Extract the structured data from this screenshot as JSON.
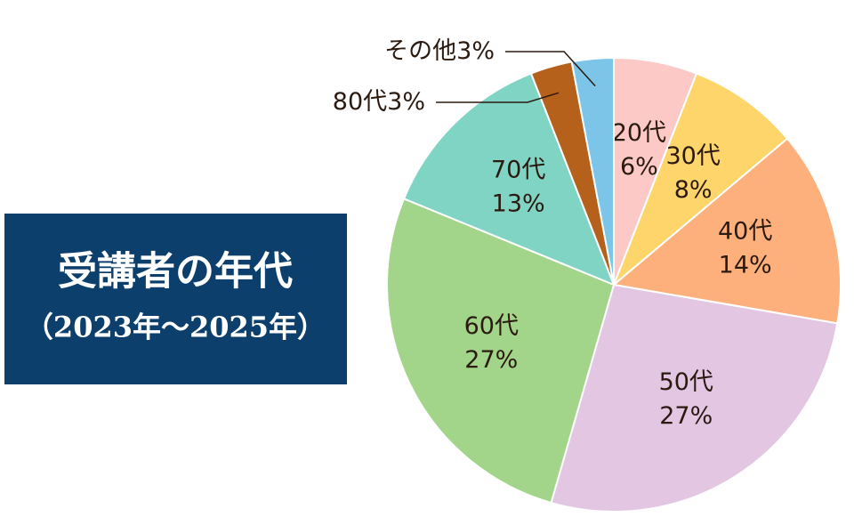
{
  "chart_data": {
    "type": "pie",
    "title": "受講者の年代",
    "subtitle": "（2023年〜2025年）",
    "categories": [
      "20代",
      "30代",
      "40代",
      "50代",
      "60代",
      "70代",
      "80代",
      "その他"
    ],
    "values": [
      6,
      8,
      14,
      27,
      27,
      13,
      3,
      3
    ],
    "value_labels": [
      "6%",
      "8%",
      "14%",
      "27%",
      "27%",
      "13%",
      "3%",
      "3%"
    ],
    "colors": [
      "#fcc9c6",
      "#fdd56b",
      "#fdb07b",
      "#e2c6e2",
      "#a2d48a",
      "#80d4c4",
      "#b5601b",
      "#7cc5e9"
    ]
  }
}
